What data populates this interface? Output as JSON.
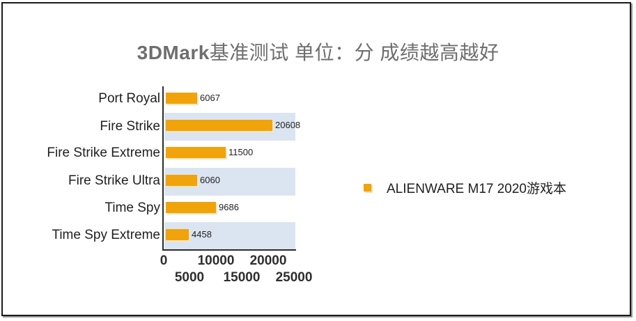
{
  "chart_data": {
    "type": "bar",
    "orientation": "horizontal",
    "title": "3DMark基准测试 单位：分 成绩越高越好",
    "title_parts": {
      "latin": "3DMark",
      "cn": "基准测试 单位：分 成绩越高越好"
    },
    "categories": [
      "Port Royal",
      "Fire Strike",
      "Fire Strike Extreme",
      "Fire Strike Ultra",
      "Time Spy",
      "Time Spy Extreme"
    ],
    "series": [
      {
        "name": "ALIENWARE M17 2020游戏本",
        "color": "#f0a30a",
        "values": [
          6067,
          20608,
          11500,
          6060,
          9686,
          4458
        ]
      }
    ],
    "value_labels": [
      "6067",
      "20608",
      "11500",
      "6060",
      "9686",
      "4458"
    ],
    "xlabel": "",
    "ylabel": "",
    "xlim": [
      0,
      25000
    ],
    "x_ticks": [
      "0",
      "5000",
      "10000",
      "15000",
      "20000",
      "25000"
    ],
    "grid": false,
    "alternating_band_color": "#dbe5f1",
    "legend_position": "right"
  }
}
